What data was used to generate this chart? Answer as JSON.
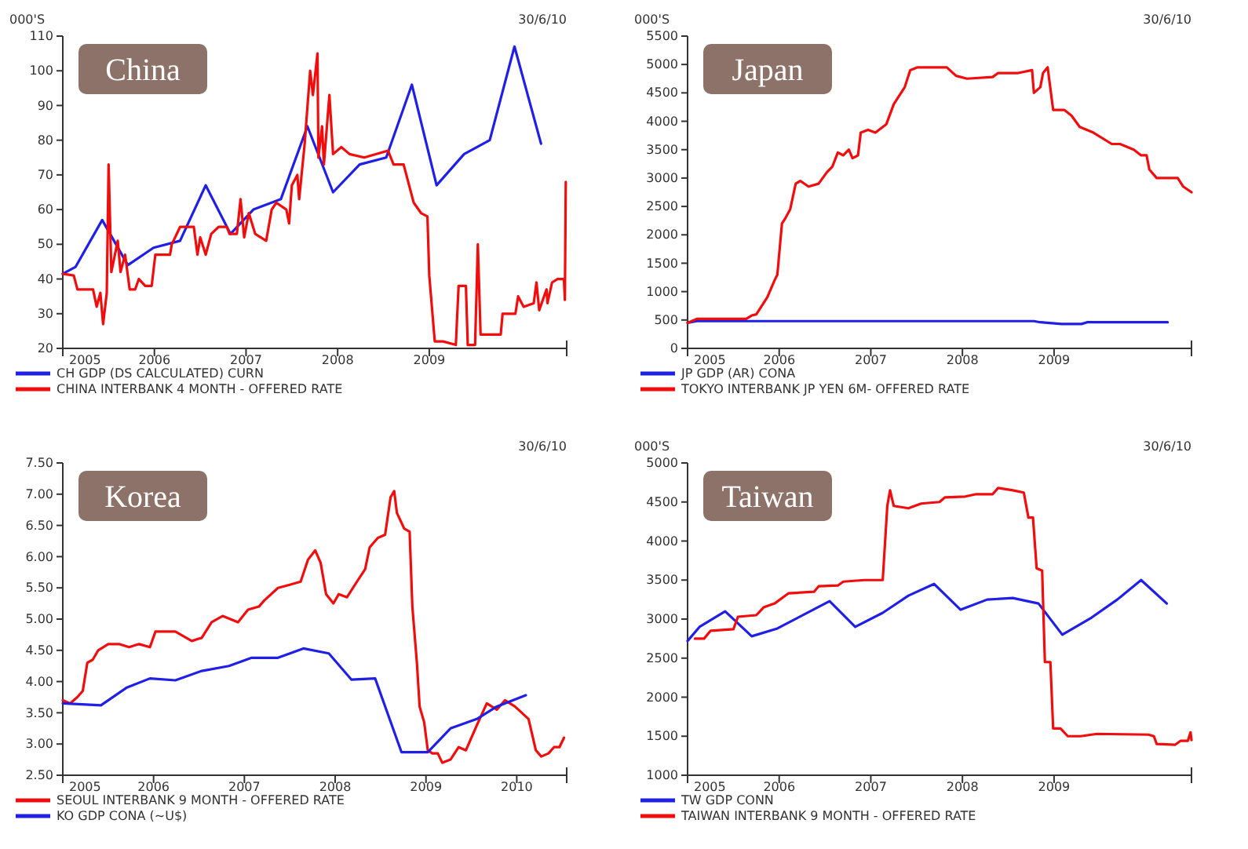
{
  "chart_data": [
    {
      "type": "line",
      "title": "China",
      "ylabel": "000'S",
      "annotations": [
        "30/6/10"
      ],
      "legend": "bottom left",
      "xlim": [
        2005,
        2010.5
      ],
      "xticks": [
        2005,
        2006,
        2007,
        2008,
        2009
      ],
      "ylim": [
        20,
        110
      ],
      "yticks": [
        20,
        30,
        40,
        50,
        60,
        70,
        80,
        90,
        100,
        110
      ],
      "series": [
        {
          "name": "CH GDP (DS CALCULATED) CURN",
          "color": "#1f1fe6",
          "x": [
            2005.0,
            2005.14,
            2005.43,
            2005.71,
            2005.99,
            2006.28,
            2006.56,
            2006.83,
            2007.08,
            2007.38,
            2007.67,
            2007.95,
            2008.24,
            2008.53,
            2008.81,
            2009.08,
            2009.38,
            2009.66,
            2009.93,
            2010.22
          ],
          "values": [
            41.5,
            43.5,
            57,
            44,
            49,
            51,
            67,
            53,
            60,
            63,
            84,
            65,
            73,
            75,
            96,
            67,
            76,
            80,
            107,
            79
          ]
        },
        {
          "name": "CHINA INTERBANK 4 MONTH - OFFERED RATE",
          "color": "#f00d0d",
          "x": [
            2005.0,
            2005.12,
            2005.16,
            2005.33,
            2005.37,
            2005.41,
            2005.44,
            2005.48,
            2005.5,
            2005.53,
            2005.6,
            2005.63,
            2005.68,
            2005.73,
            2005.79,
            2005.83,
            2005.9,
            2005.97,
            2006.01,
            2006.17,
            2006.19,
            2006.28,
            2006.43,
            2006.47,
            2006.5,
            2006.56,
            2006.62,
            2006.7,
            2006.79,
            2006.82,
            2006.9,
            2006.94,
            2006.98,
            2007.03,
            2007.1,
            2007.22,
            2007.28,
            2007.33,
            2007.44,
            2007.47,
            2007.5,
            2007.56,
            2007.58,
            2007.64,
            2007.7,
            2007.73,
            2007.78,
            2007.79,
            2007.83,
            2007.85,
            2007.91,
            2007.95,
            2008.04,
            2008.13,
            2008.29,
            2008.55,
            2008.61,
            2008.72,
            2008.83,
            2008.91,
            2008.98,
            2009.0,
            2009.06,
            2009.15,
            2009.29,
            2009.32,
            2009.4,
            2009.42,
            2009.5,
            2009.53,
            2009.56,
            2009.78,
            2009.8,
            2009.94,
            2009.97,
            2010.03,
            2010.14,
            2010.17,
            2010.2,
            2010.28,
            2010.29,
            2010.34,
            2010.4,
            2010.47,
            2010.48,
            2010.49
          ],
          "values": [
            41.5,
            41,
            37,
            37,
            32,
            36,
            27,
            36,
            73,
            42,
            51,
            42,
            47,
            37,
            37,
            40,
            38,
            38,
            47,
            47,
            50,
            55,
            55,
            47,
            52,
            47,
            53,
            55,
            55,
            53,
            53,
            63,
            52,
            59,
            53,
            51,
            60,
            62,
            60,
            56,
            67,
            70,
            63,
            79,
            100,
            93,
            105,
            75,
            84,
            73,
            93,
            76,
            78,
            76,
            75,
            77,
            73,
            73,
            62,
            59,
            58,
            41,
            22,
            22,
            21,
            38,
            38,
            21,
            21,
            50,
            24,
            24,
            30,
            30,
            35,
            32,
            33,
            39,
            31,
            37,
            33,
            39,
            40,
            40,
            34,
            68
          ]
        }
      ]
    },
    {
      "type": "line",
      "title": "Japan",
      "ylabel": "000'S",
      "annotations": [
        "30/6/10"
      ],
      "legend": "bottom left",
      "xlim": [
        2005,
        2010.5
      ],
      "xticks": [
        2005,
        2006,
        2007,
        2008,
        2009
      ],
      "ylim": [
        0,
        5500
      ],
      "yticks": [
        0,
        500,
        1000,
        1500,
        2000,
        2500,
        3000,
        3500,
        4000,
        4500,
        5000,
        5500
      ],
      "series": [
        {
          "name": "JP GDP (AR) CONA",
          "color": "#1f1fe6",
          "x": [
            2005.0,
            2005.1,
            2008.78,
            2008.85,
            2009.08,
            2009.3,
            2009.36,
            2010.24
          ],
          "values": [
            450,
            480,
            480,
            460,
            430,
            430,
            460,
            460
          ]
        },
        {
          "name": "TOKYO INTERBANK JP YEN 6M- OFFERED RATE",
          "color": "#f00d0d",
          "x": [
            2005.0,
            2005.1,
            2005.64,
            2005.7,
            2005.75,
            2005.87,
            2005.95,
            2005.98,
            2006.03,
            2006.07,
            2006.12,
            2006.18,
            2006.23,
            2006.32,
            2006.43,
            2006.52,
            2006.58,
            2006.64,
            2006.7,
            2006.76,
            2006.8,
            2006.86,
            2006.89,
            2006.97,
            2007.05,
            2007.17,
            2007.25,
            2007.37,
            2007.43,
            2007.51,
            2007.83,
            2007.93,
            2008.05,
            2008.33,
            2008.39,
            2008.61,
            2008.76,
            2008.78,
            2008.85,
            2008.88,
            2008.93,
            2008.99,
            2009.11,
            2009.19,
            2009.28,
            2009.43,
            2009.63,
            2009.72,
            2009.87,
            2009.95,
            2010.01,
            2010.04,
            2010.12,
            2010.35,
            2010.41,
            2010.5
          ],
          "values": [
            450,
            520,
            520,
            580,
            600,
            900,
            1200,
            1300,
            2200,
            2300,
            2450,
            2900,
            2950,
            2850,
            2900,
            3100,
            3200,
            3450,
            3400,
            3500,
            3350,
            3400,
            3800,
            3850,
            3800,
            3950,
            4300,
            4600,
            4900,
            4950,
            4950,
            4800,
            4750,
            4780,
            4850,
            4850,
            4900,
            4500,
            4600,
            4850,
            4950,
            4200,
            4200,
            4100,
            3900,
            3800,
            3600,
            3600,
            3500,
            3400,
            3400,
            3150,
            3000,
            3000,
            2850,
            2750
          ]
        }
      ]
    },
    {
      "type": "line",
      "title": "Korea",
      "annotations": [
        "30/6/10"
      ],
      "legend": "bottom left",
      "xlim": [
        2005,
        2010.55
      ],
      "xticks": [
        2005,
        2006,
        2007,
        2008,
        2009,
        2010
      ],
      "ylim": [
        2.5,
        7.5
      ],
      "yticks": [
        {
          "value": 2.5,
          "label": "2.50"
        },
        {
          "value": 3,
          "label": "3.00"
        },
        {
          "value": 3.5,
          "label": "3.50"
        },
        {
          "value": 4,
          "label": "4.00"
        },
        {
          "value": 4.5,
          "label": "4.50"
        },
        {
          "value": 5,
          "label": "5.00"
        },
        {
          "value": 5.5,
          "label": "5.50"
        },
        {
          "value": 6,
          "label": "6.00"
        },
        {
          "value": 6.5,
          "label": "6.50"
        },
        {
          "value": 7,
          "label": "7.00"
        },
        {
          "value": 7.5,
          "label": "7.50"
        }
      ],
      "series": [
        {
          "name": "SEOUL INTERBANK 9 MONTH - OFFERED RATE",
          "color": "#f00d0d",
          "x": [
            2005.0,
            2005.08,
            2005.16,
            2005.22,
            2005.27,
            2005.33,
            2005.39,
            2005.5,
            2005.62,
            2005.73,
            2005.84,
            2005.96,
            2006.02,
            2006.24,
            2006.42,
            2006.53,
            2006.64,
            2006.76,
            2006.93,
            2007.04,
            2007.16,
            2007.22,
            2007.37,
            2007.5,
            2007.62,
            2007.7,
            2007.78,
            2007.84,
            2007.9,
            2007.98,
            2008.04,
            2008.13,
            2008.24,
            2008.33,
            2008.38,
            2008.47,
            2008.55,
            2008.61,
            2008.65,
            2008.68,
            2008.76,
            2008.82,
            2008.85,
            2008.9,
            2008.93,
            2008.98,
            2009.02,
            2009.07,
            2009.13,
            2009.18,
            2009.27,
            2009.36,
            2009.44,
            2009.56,
            2009.67,
            2009.78,
            2009.87,
            2009.98,
            2010.13,
            2010.21,
            2010.27,
            2010.35,
            2010.41,
            2010.47,
            2010.52
          ],
          "values": [
            3.7,
            3.65,
            3.75,
            3.85,
            4.3,
            4.35,
            4.5,
            4.6,
            4.6,
            4.55,
            4.6,
            4.55,
            4.8,
            4.8,
            4.65,
            4.7,
            4.95,
            5.05,
            4.95,
            5.15,
            5.2,
            5.3,
            5.5,
            5.55,
            5.6,
            5.95,
            6.1,
            5.9,
            5.4,
            5.25,
            5.4,
            5.35,
            5.6,
            5.8,
            6.15,
            6.3,
            6.35,
            6.95,
            7.05,
            6.7,
            6.45,
            6.4,
            5.2,
            4.3,
            3.6,
            3.35,
            2.9,
            2.85,
            2.85,
            2.7,
            2.75,
            2.95,
            2.9,
            3.3,
            3.65,
            3.55,
            3.7,
            3.6,
            3.4,
            2.9,
            2.8,
            2.85,
            2.95,
            2.95,
            3.1
          ]
        },
        {
          "name": "KO GDP CONA (~U$)",
          "color": "#1f1fe6",
          "x": [
            2005.0,
            2005.42,
            2005.7,
            2005.96,
            2006.24,
            2006.53,
            2006.83,
            2007.08,
            2007.37,
            2007.65,
            2007.93,
            2008.18,
            2008.44,
            2008.73,
            2009.02,
            2009.27,
            2009.56,
            2009.78,
            2010.1
          ],
          "values": [
            3.65,
            3.62,
            3.9,
            4.05,
            4.02,
            4.17,
            4.25,
            4.38,
            4.38,
            4.53,
            4.45,
            4.03,
            4.05,
            2.87,
            2.87,
            3.25,
            3.4,
            3.6,
            3.78
          ]
        }
      ]
    },
    {
      "type": "line",
      "title": "Taiwan",
      "ylabel": "000'S",
      "annotations": [
        "30/6/10"
      ],
      "legend": "bottom left",
      "xlim": [
        2005,
        2010.5
      ],
      "xticks": [
        2005,
        2006,
        2007,
        2008,
        2009
      ],
      "ylim": [
        1000,
        5000
      ],
      "yticks": [
        1000,
        1500,
        2000,
        2500,
        3000,
        3500,
        4000,
        4500,
        5000
      ],
      "series": [
        {
          "name": "TW GDP CONN",
          "color": "#1f1fe6",
          "x": [
            2005.0,
            2005.13,
            2005.41,
            2005.7,
            2005.98,
            2006.55,
            2006.83,
            2007.13,
            2007.41,
            2007.69,
            2007.98,
            2008.27,
            2008.55,
            2008.83,
            2009.09,
            2009.41,
            2009.69,
            2009.95,
            2010.23
          ],
          "values": [
            2720,
            2900,
            3100,
            2780,
            2880,
            3230,
            2900,
            3080,
            3300,
            3450,
            3120,
            3250,
            3270,
            3200,
            2800,
            3020,
            3250,
            3500,
            3200
          ]
        },
        {
          "name": "TAIWAN INTERBANK 9 MONTH - OFFERED RATE",
          "color": "#f00d0d",
          "x": [
            2005.08,
            2005.18,
            2005.25,
            2005.5,
            2005.55,
            2005.75,
            2005.83,
            2005.95,
            2006.1,
            2006.38,
            2006.43,
            2006.64,
            2006.7,
            2006.93,
            2007.13,
            2007.18,
            2007.21,
            2007.25,
            2007.41,
            2007.55,
            2007.75,
            2007.81,
            2008.03,
            2008.15,
            2008.33,
            2008.39,
            2008.55,
            2008.67,
            2008.72,
            2008.77,
            2008.81,
            2008.87,
            2008.9,
            2008.96,
            2008.99,
            2009.07,
            2009.15,
            2009.29,
            2009.47,
            2010.03,
            2010.09,
            2010.12,
            2010.32,
            2010.38,
            2010.46,
            2010.49,
            2010.5
          ],
          "values": [
            2750,
            2750,
            2850,
            2870,
            3030,
            3050,
            3150,
            3200,
            3330,
            3350,
            3420,
            3430,
            3480,
            3500,
            3500,
            4450,
            4650,
            4450,
            4420,
            4480,
            4500,
            4560,
            4570,
            4600,
            4600,
            4680,
            4650,
            4620,
            4300,
            4300,
            3650,
            3620,
            2450,
            2450,
            1600,
            1600,
            1500,
            1500,
            1530,
            1520,
            1500,
            1400,
            1390,
            1440,
            1440,
            1550,
            1450
          ]
        }
      ]
    }
  ]
}
